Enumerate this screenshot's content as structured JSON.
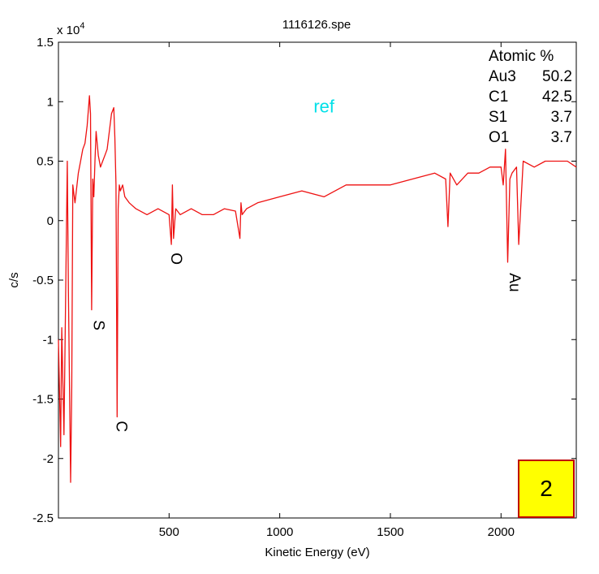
{
  "chart_data": {
    "type": "line",
    "title": "1116126.spe",
    "xlabel": "Kinetic Energy (eV)",
    "ylabel": "c/s",
    "exponent_label": "x 10",
    "exponent_power": "4",
    "xlim": [
      0,
      2340
    ],
    "ylim": [
      -2.5,
      1.5
    ],
    "x_ticks": [
      500,
      1000,
      1500,
      2000
    ],
    "y_ticks": [
      -2.5,
      -2,
      -1.5,
      -1,
      -0.5,
      0,
      0.5,
      1,
      1.5
    ],
    "y_tick_labels": [
      "-2.5",
      "-2",
      "-1.5",
      "-1",
      "-0.5",
      "0",
      "0.5",
      "1",
      "1.5"
    ],
    "line_color": "#ee1111",
    "grid": false,
    "series": [
      {
        "x": [
          0,
          10,
          15,
          25,
          40,
          45,
          55,
          60,
          65,
          75,
          90,
          100,
          110,
          120,
          130,
          140,
          145,
          150,
          155,
          160,
          165,
          170,
          180,
          190,
          200,
          210,
          220,
          230,
          240,
          250,
          255,
          260,
          265,
          270,
          275,
          280,
          290,
          300,
          320,
          350,
          400,
          450,
          500,
          510,
          515,
          520,
          530,
          550,
          600,
          650,
          700,
          750,
          800,
          820,
          825,
          830,
          850,
          900,
          1000,
          1100,
          1200,
          1300,
          1400,
          1500,
          1600,
          1700,
          1750,
          1760,
          1770,
          1800,
          1850,
          1900,
          1950,
          2000,
          2010,
          2020,
          2030,
          2040,
          2050,
          2070,
          2080,
          2100,
          2150,
          2200,
          2250,
          2300,
          2340
        ],
        "y": [
          -1.0,
          -1.9,
          -0.9,
          -1.8,
          0.5,
          -0.6,
          -2.2,
          -1.4,
          0.3,
          0.15,
          0.4,
          0.5,
          0.6,
          0.65,
          0.8,
          1.05,
          0.9,
          -0.75,
          0.35,
          0.2,
          0.5,
          0.75,
          0.55,
          0.45,
          0.5,
          0.55,
          0.6,
          0.75,
          0.9,
          0.95,
          0.7,
          0.3,
          -1.65,
          0.1,
          0.3,
          0.25,
          0.3,
          0.2,
          0.15,
          0.1,
          0.05,
          0.1,
          0.05,
          -0.2,
          0.3,
          -0.15,
          0.1,
          0.05,
          0.1,
          0.05,
          0.05,
          0.1,
          0.08,
          -0.15,
          0.15,
          0.05,
          0.1,
          0.15,
          0.2,
          0.25,
          0.2,
          0.3,
          0.3,
          0.3,
          0.35,
          0.4,
          0.35,
          -0.05,
          0.4,
          0.3,
          0.4,
          0.4,
          0.45,
          0.45,
          0.3,
          0.6,
          -0.35,
          0.35,
          0.4,
          0.45,
          -0.2,
          0.5,
          0.45,
          0.5,
          0.5,
          0.5,
          0.45
        ]
      }
    ],
    "peak_labels": [
      {
        "text": "S",
        "x": 160,
        "y": -0.88
      },
      {
        "text": "C",
        "x": 262,
        "y": -1.73
      },
      {
        "text": "O",
        "x": 510,
        "y": -0.32
      },
      {
        "text": "Au",
        "x": 2040,
        "y": -0.52
      }
    ],
    "ref_label": {
      "text": "ref",
      "x": 1200,
      "y": 0.91
    },
    "legend": {
      "header": "Atomic %",
      "placement": "top-right",
      "entries": [
        {
          "name": "Au3",
          "value": "50.2"
        },
        {
          "name": "C1",
          "value": "42.5"
        },
        {
          "name": "S1",
          "value": "3.7"
        },
        {
          "name": "O1",
          "value": "3.7"
        }
      ]
    }
  },
  "badge": {
    "label": "2",
    "background": "#ffff00",
    "border": "#c00000"
  }
}
